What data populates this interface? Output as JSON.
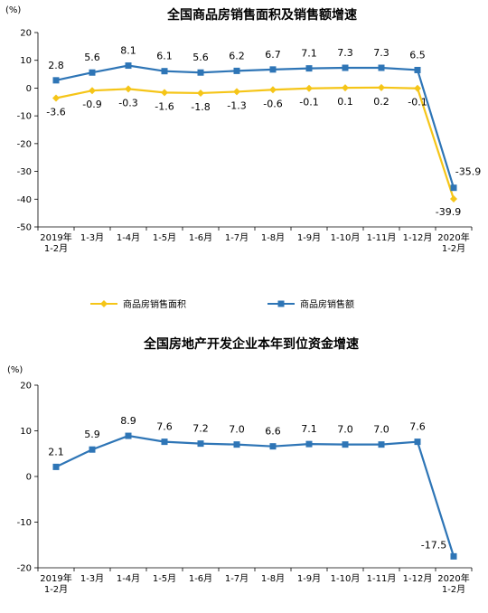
{
  "chart_data": [
    {
      "type": "line",
      "title": "全国商品房销售面积及销售额增速",
      "yunit": "(%)",
      "categories": [
        "2019年\n1-2月",
        "1-3月",
        "1-4月",
        "1-5月",
        "1-6月",
        "1-7月",
        "1-8月",
        "1-9月",
        "1-10月",
        "1-11月",
        "1-12月",
        "2020年\n1-2月"
      ],
      "ylim": [
        -50,
        20
      ],
      "yticks": [
        20,
        10,
        0,
        -10,
        -20,
        -30,
        -40,
        -50
      ],
      "grid": false,
      "legend_position": "bottom",
      "series": [
        {
          "name": "商品房销售面积",
          "color": "#f5c518",
          "marker": "diamond",
          "values": [
            -3.6,
            -0.9,
            -0.3,
            -1.6,
            -1.8,
            -1.3,
            -0.6,
            -0.1,
            0.1,
            0.2,
            -0.1,
            -39.9
          ]
        },
        {
          "name": "商品房销售额",
          "color": "#2e75b6",
          "marker": "square",
          "values": [
            2.8,
            5.6,
            8.1,
            6.1,
            5.6,
            6.2,
            6.7,
            7.1,
            7.3,
            7.3,
            6.5,
            -35.9
          ]
        }
      ]
    },
    {
      "type": "line",
      "title": "全国房地产开发企业本年到位资金增速",
      "yunit": "(%)",
      "categories": [
        "2019年\n1-2月",
        "1-3月",
        "1-4月",
        "1-5月",
        "1-6月",
        "1-7月",
        "1-8月",
        "1-9月",
        "1-10月",
        "1-11月",
        "1-12月",
        "2020年\n1-2月"
      ],
      "ylim": [
        -20,
        20
      ],
      "yticks": [
        20,
        10,
        0,
        -10,
        -20
      ],
      "grid": false,
      "series": [
        {
          "color": "#2e75b6",
          "marker": "square",
          "values": [
            2.1,
            5.9,
            8.9,
            7.6,
            7.2,
            7.0,
            6.6,
            7.1,
            7.0,
            7.0,
            7.6,
            -17.5
          ]
        }
      ]
    }
  ]
}
